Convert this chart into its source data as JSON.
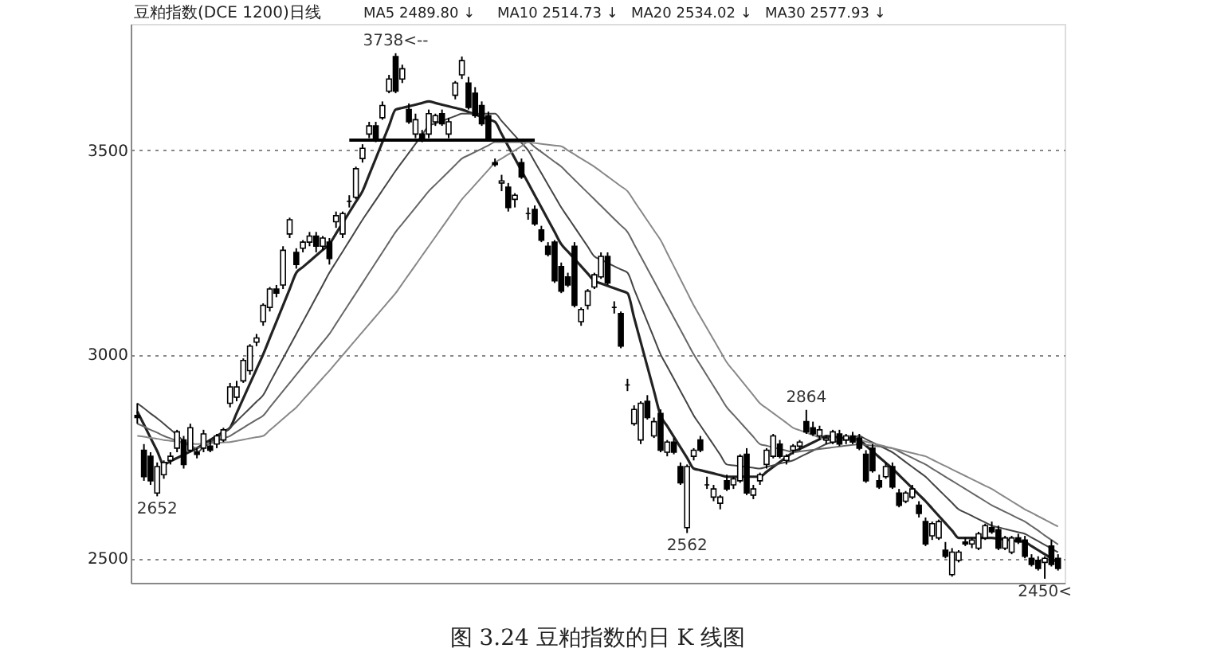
{
  "chart_data": {
    "type": "candlestick",
    "title": "豆粕指数(DCE 1200)日线",
    "categories": [
      null,
      null,
      null,
      null,
      null,
      null,
      null,
      null,
      null,
      null,
      null,
      null,
      null,
      null,
      null,
      null,
      null,
      null,
      null,
      null,
      null,
      null,
      null,
      null,
      null,
      null,
      null,
      null,
      null,
      null,
      null,
      null,
      null,
      null,
      null,
      null,
      null,
      null,
      null,
      null,
      null,
      null,
      null,
      null,
      null,
      null,
      null,
      null,
      null,
      null,
      null,
      null,
      null,
      null,
      null,
      null,
      null,
      null,
      null,
      null,
      null,
      null,
      null,
      null,
      null,
      null,
      null,
      null,
      null,
      null,
      null,
      null,
      null,
      null,
      null,
      null,
      null,
      null,
      null,
      null,
      null,
      null,
      null,
      null,
      null,
      null,
      null,
      null,
      null,
      null,
      null,
      null,
      null,
      null,
      null,
      null,
      null,
      null,
      null,
      null,
      null,
      null,
      null,
      null,
      null,
      null,
      null,
      null,
      null,
      null,
      null,
      null,
      null,
      null,
      null,
      null,
      null,
      null,
      null,
      null,
      null,
      null,
      null,
      null,
      null,
      null,
      null,
      null,
      null,
      null,
      null,
      null,
      null,
      null,
      null,
      null,
      null,
      null,
      null,
      null
    ],
    "ohlc": [
      [
        2850,
        2880,
        2830,
        2845
      ],
      [
        2765,
        2780,
        2690,
        2700
      ],
      [
        2750,
        2760,
        2680,
        2690
      ],
      [
        2660,
        2735,
        2652,
        2725
      ],
      [
        2705,
        2740,
        2695,
        2735
      ],
      [
        2740,
        2760,
        2730,
        2750
      ],
      [
        2770,
        2815,
        2760,
        2810
      ],
      [
        2790,
        2800,
        2720,
        2730
      ],
      [
        2765,
        2830,
        2760,
        2820
      ],
      [
        2760,
        2770,
        2745,
        2755
      ],
      [
        2770,
        2815,
        2760,
        2805
      ],
      [
        2775,
        2790,
        2760,
        2765
      ],
      [
        2780,
        2805,
        2770,
        2800
      ],
      [
        2790,
        2820,
        2785,
        2815
      ],
      [
        2880,
        2930,
        2870,
        2920
      ],
      [
        2895,
        2935,
        2885,
        2920
      ],
      [
        2935,
        2990,
        2930,
        2985
      ],
      [
        2960,
        3025,
        2950,
        3020
      ],
      [
        3030,
        3050,
        3020,
        3040
      ],
      [
        3080,
        3125,
        3070,
        3120
      ],
      [
        3115,
        3165,
        3105,
        3160
      ],
      [
        3160,
        3170,
        3140,
        3150
      ],
      [
        3170,
        3265,
        3160,
        3255
      ],
      [
        3295,
        3335,
        3285,
        3330
      ],
      [
        3250,
        3260,
        3210,
        3220
      ],
      [
        3260,
        3280,
        3250,
        3275
      ],
      [
        3275,
        3300,
        3265,
        3290
      ],
      [
        3290,
        3300,
        3250,
        3265
      ],
      [
        3265,
        3290,
        3255,
        3285
      ],
      [
        3275,
        3285,
        3220,
        3235
      ],
      [
        3325,
        3350,
        3310,
        3340
      ],
      [
        3295,
        3350,
        3285,
        3345
      ],
      [
        3375,
        3390,
        3360,
        3375
      ],
      [
        3385,
        3460,
        3380,
        3455
      ],
      [
        3480,
        3515,
        3470,
        3505
      ],
      [
        3540,
        3570,
        3530,
        3560
      ],
      [
        3560,
        3570,
        3520,
        3530
      ],
      [
        3580,
        3620,
        3575,
        3610
      ],
      [
        3645,
        3685,
        3640,
        3675
      ],
      [
        3730,
        3738,
        3640,
        3645
      ],
      [
        3675,
        3710,
        3665,
        3700
      ],
      [
        3600,
        3615,
        3565,
        3570
      ],
      [
        3540,
        3590,
        3530,
        3575
      ],
      [
        3540,
        3550,
        3520,
        3525
      ],
      [
        3540,
        3600,
        3530,
        3590
      ],
      [
        3570,
        3590,
        3560,
        3585
      ],
      [
        3590,
        3600,
        3560,
        3565
      ],
      [
        3540,
        3580,
        3530,
        3570
      ],
      [
        3635,
        3670,
        3625,
        3665
      ],
      [
        3685,
        3730,
        3675,
        3720
      ],
      [
        3665,
        3680,
        3600,
        3605
      ],
      [
        3640,
        3655,
        3580,
        3585
      ],
      [
        3610,
        3620,
        3560,
        3565
      ],
      [
        3585,
        3595,
        3525,
        3530
      ],
      [
        3470,
        3480,
        3460,
        3465
      ],
      [
        3420,
        3440,
        3400,
        3425
      ],
      [
        3410,
        3420,
        3350,
        3360
      ],
      [
        3380,
        3395,
        3360,
        3390
      ],
      [
        3470,
        3480,
        3430,
        3435
      ],
      [
        3345,
        3360,
        3330,
        3345
      ],
      [
        3355,
        3365,
        3315,
        3320
      ],
      [
        3305,
        3315,
        3275,
        3280
      ],
      [
        3265,
        3275,
        3240,
        3245
      ],
      [
        3275,
        3280,
        3175,
        3180
      ],
      [
        3215,
        3225,
        3150,
        3155
      ],
      [
        3190,
        3200,
        3165,
        3170
      ],
      [
        3265,
        3275,
        3115,
        3120
      ],
      [
        3080,
        3115,
        3070,
        3110
      ],
      [
        3120,
        3160,
        3110,
        3155
      ],
      [
        3165,
        3200,
        3160,
        3195
      ],
      [
        3190,
        3250,
        3185,
        3240
      ],
      [
        3240,
        3250,
        3170,
        3175
      ],
      [
        3115,
        3130,
        3100,
        3115
      ],
      [
        3100,
        3105,
        3015,
        3020
      ],
      [
        2925,
        2940,
        2910,
        2925
      ],
      [
        2830,
        2875,
        2825,
        2865
      ],
      [
        2790,
        2885,
        2780,
        2880
      ],
      [
        2885,
        2900,
        2840,
        2845
      ],
      [
        2800,
        2845,
        2795,
        2835
      ],
      [
        2855,
        2865,
        2760,
        2765
      ],
      [
        2760,
        2790,
        2750,
        2785
      ],
      [
        2785,
        2795,
        2755,
        2760
      ],
      [
        2725,
        2735,
        2680,
        2685
      ],
      [
        2575,
        2730,
        2562,
        2725
      ],
      [
        2750,
        2770,
        2740,
        2765
      ],
      [
        2790,
        2800,
        2760,
        2765
      ],
      [
        2680,
        2700,
        2670,
        2680
      ],
      [
        2650,
        2680,
        2640,
        2670
      ],
      [
        2635,
        2655,
        2620,
        2650
      ],
      [
        2690,
        2705,
        2665,
        2670
      ],
      [
        2680,
        2700,
        2670,
        2695
      ],
      [
        2690,
        2755,
        2685,
        2750
      ],
      [
        2755,
        2770,
        2655,
        2660
      ],
      [
        2655,
        2680,
        2645,
        2670
      ],
      [
        2690,
        2710,
        2680,
        2705
      ],
      [
        2730,
        2770,
        2720,
        2765
      ],
      [
        2750,
        2805,
        2745,
        2800
      ],
      [
        2780,
        2790,
        2745,
        2750
      ],
      [
        2740,
        2755,
        2730,
        2750
      ],
      [
        2765,
        2780,
        2755,
        2775
      ],
      [
        2775,
        2790,
        2765,
        2785
      ],
      [
        2835,
        2864,
        2805,
        2810
      ],
      [
        2820,
        2835,
        2800,
        2805
      ],
      [
        2800,
        2825,
        2790,
        2815
      ],
      [
        2790,
        2800,
        2780,
        2795
      ],
      [
        2785,
        2815,
        2780,
        2810
      ],
      [
        2805,
        2815,
        2775,
        2780
      ],
      [
        2790,
        2805,
        2780,
        2800
      ],
      [
        2800,
        2810,
        2780,
        2785
      ],
      [
        2795,
        2805,
        2765,
        2770
      ],
      [
        2755,
        2765,
        2685,
        2690
      ],
      [
        2770,
        2780,
        2710,
        2715
      ],
      [
        2690,
        2705,
        2670,
        2675
      ],
      [
        2700,
        2735,
        2695,
        2725
      ],
      [
        2725,
        2735,
        2670,
        2675
      ],
      [
        2660,
        2670,
        2625,
        2630
      ],
      [
        2640,
        2665,
        2635,
        2660
      ],
      [
        2650,
        2680,
        2645,
        2670
      ],
      [
        2630,
        2640,
        2600,
        2610
      ],
      [
        2590,
        2600,
        2530,
        2535
      ],
      [
        2555,
        2590,
        2545,
        2585
      ],
      [
        2550,
        2595,
        2545,
        2590
      ],
      [
        2520,
        2540,
        2500,
        2505
      ],
      [
        2460,
        2525,
        2455,
        2515
      ],
      [
        2495,
        2520,
        2490,
        2515
      ],
      [
        2540,
        2550,
        2530,
        2535
      ],
      [
        2535,
        2550,
        2525,
        2545
      ],
      [
        2525,
        2565,
        2520,
        2560
      ],
      [
        2550,
        2585,
        2545,
        2580
      ],
      [
        2575,
        2590,
        2560,
        2565
      ],
      [
        2570,
        2580,
        2520,
        2525
      ],
      [
        2525,
        2555,
        2520,
        2550
      ],
      [
        2515,
        2555,
        2510,
        2550
      ],
      [
        2550,
        2560,
        2535,
        2540
      ],
      [
        2545,
        2555,
        2500,
        2505
      ],
      [
        2500,
        2510,
        2480,
        2485
      ],
      [
        2495,
        2505,
        2470,
        2475
      ],
      [
        2490,
        2505,
        2450,
        2500
      ],
      [
        2530,
        2545,
        2480,
        2485
      ],
      [
        2500,
        2510,
        2470,
        2475
      ]
    ],
    "series": [
      {
        "type": "line",
        "color": "#222222",
        "values": [
          2860,
          2828,
          2795,
          2763,
          2730,
          2738,
          2746,
          2754,
          2762,
          2770,
          2780,
          2790,
          2800,
          2810,
          2820,
          2856,
          2892,
          2928,
          2964,
          3000,
          3040,
          3080,
          3120,
          3160,
          3200,
          3214,
          3228,
          3242,
          3256,
          3270,
          3296,
          3322,
          3348,
          3374,
          3400,
          3440,
          3480,
          3520,
          3560,
          3600,
          3604,
          3608,
          3612,
          3616,
          3620,
          3616,
          3612,
          3608,
          3604,
          3600,
          3594,
          3588,
          3582,
          3576,
          3570,
          3540,
          3510,
          3480,
          3450,
          3420,
          3390,
          3360,
          3330,
          3300,
          3270,
          3252,
          3234,
          3216,
          3198,
          3180,
          3174,
          3168,
          3162,
          3156,
          3150,
          3090,
          3030,
          2970,
          2910,
          2850,
          2824,
          2798,
          2772,
          2746,
          2720,
          2716,
          2712,
          2708,
          2704,
          2700,
          2700,
          2700,
          2700,
          2700,
          2700,
          2712,
          2724,
          2736,
          2748,
          2760,
          2768,
          2776,
          2784,
          2792,
          2800,
          2798,
          2796,
          2794,
          2792,
          2790,
          2776,
          2762,
          2748,
          2734,
          2720,
          2704,
          2688,
          2672,
          2656,
          2640,
          2622,
          2604,
          2586,
          2568,
          2550,
          2550,
          2550,
          2550,
          2550,
          2550,
          2548,
          2546,
          2544,
          2542,
          2540,
          2530,
          2520,
          2510,
          2500,
          2490
        ]
      },
      {
        "type": "line",
        "color": "#444444",
        "values": [
          2880,
          2868,
          2855,
          2843,
          2830,
          2816,
          2802,
          2788,
          2774,
          2760,
          2772,
          2784,
          2796,
          2808,
          2820,
          2836,
          2852,
          2868,
          2884,
          2900,
          2930,
          2960,
          2990,
          3020,
          3050,
          3080,
          3110,
          3140,
          3170,
          3200,
          3226,
          3252,
          3278,
          3304,
          3330,
          3354,
          3378,
          3402,
          3426,
          3450,
          3472,
          3494,
          3516,
          3538,
          3560,
          3566,
          3572,
          3578,
          3584,
          3590,
          3590,
          3590,
          3590,
          3590,
          3590,
          3572,
          3554,
          3536,
          3518,
          3500,
          3472,
          3444,
          3416,
          3388,
          3360,
          3336,
          3312,
          3288,
          3264,
          3240,
          3232,
          3224,
          3216,
          3208,
          3200,
          3160,
          3120,
          3080,
          3040,
          3000,
          2970,
          2940,
          2910,
          2880,
          2850,
          2826,
          2802,
          2778,
          2754,
          2730,
          2728,
          2726,
          2724,
          2722,
          2720,
          2724,
          2728,
          2732,
          2736,
          2740,
          2748,
          2756,
          2764,
          2772,
          2780,
          2784,
          2788,
          2792,
          2796,
          2800,
          2792,
          2784,
          2776,
          2768,
          2760,
          2748,
          2736,
          2724,
          2712,
          2700,
          2684,
          2668,
          2652,
          2636,
          2620,
          2612,
          2604,
          2596,
          2588,
          2580,
          2576,
          2572,
          2568,
          2564,
          2560,
          2551,
          2542,
          2533,
          2524,
          2515
        ]
      },
      {
        "type": "line",
        "color": "#666666",
        "values": [
          2830,
          2823,
          2815,
          2808,
          2800,
          2794,
          2788,
          2782,
          2776,
          2770,
          2776,
          2782,
          2788,
          2794,
          2800,
          2810,
          2820,
          2830,
          2840,
          2850,
          2870,
          2890,
          2910,
          2930,
          2950,
          2970,
          2990,
          3010,
          3030,
          3050,
          3075,
          3100,
          3125,
          3150,
          3175,
          3200,
          3225,
          3250,
          3275,
          3300,
          3320,
          3340,
          3360,
          3380,
          3400,
          3416,
          3432,
          3448,
          3464,
          3480,
          3488,
          3496,
          3504,
          3512,
          3520,
          3520,
          3520,
          3520,
          3520,
          3520,
          3508,
          3496,
          3484,
          3472,
          3460,
          3444,
          3428,
          3412,
          3396,
          3380,
          3364,
          3348,
          3332,
          3316,
          3300,
          3270,
          3240,
          3210,
          3180,
          3150,
          3120,
          3090,
          3060,
          3030,
          3000,
          2974,
          2948,
          2922,
          2896,
          2870,
          2852,
          2834,
          2816,
          2798,
          2780,
          2776,
          2772,
          2768,
          2764,
          2760,
          2762,
          2764,
          2766,
          2768,
          2770,
          2772,
          2774,
          2776,
          2778,
          2780,
          2778,
          2776,
          2774,
          2772,
          2770,
          2762,
          2754,
          2746,
          2738,
          2730,
          2720,
          2710,
          2700,
          2690,
          2680,
          2670,
          2660,
          2650,
          2640,
          2630,
          2622,
          2614,
          2606,
          2598,
          2590,
          2579,
          2568,
          2556,
          2545,
          2534
        ]
      },
      {
        "type": "line",
        "color": "#888888",
        "values": [
          2800,
          2798,
          2795,
          2793,
          2790,
          2788,
          2786,
          2784,
          2782,
          2780,
          2781,
          2782,
          2783,
          2784,
          2785,
          2788,
          2791,
          2794,
          2797,
          2800,
          2814,
          2828,
          2842,
          2856,
          2870,
          2888,
          2906,
          2924,
          2942,
          2960,
          2979,
          2998,
          3017,
          3036,
          3055,
          3074,
          3093,
          3112,
          3131,
          3150,
          3173,
          3196,
          3219,
          3242,
          3265,
          3288,
          3311,
          3334,
          3357,
          3380,
          3398,
          3416,
          3434,
          3452,
          3470,
          3480,
          3490,
          3500,
          3510,
          3520,
          3518,
          3516,
          3514,
          3512,
          3510,
          3500,
          3490,
          3480,
          3470,
          3460,
          3448,
          3436,
          3424,
          3412,
          3400,
          3376,
          3352,
          3328,
          3304,
          3280,
          3248,
          3216,
          3184,
          3152,
          3120,
          3092,
          3064,
          3036,
          3008,
          2980,
          2960,
          2940,
          2920,
          2900,
          2880,
          2868,
          2856,
          2844,
          2832,
          2820,
          2814,
          2808,
          2802,
          2796,
          2790,
          2790,
          2790,
          2790,
          2790,
          2790,
          2786,
          2782,
          2778,
          2774,
          2770,
          2766,
          2762,
          2758,
          2754,
          2750,
          2742,
          2734,
          2726,
          2718,
          2710,
          2702,
          2694,
          2686,
          2678,
          2670,
          2660,
          2650,
          2640,
          2630,
          2620,
          2612,
          2603,
          2595,
          2586,
          2578
        ]
      },
      {
        "type": "line",
        "color": "#000000",
        "values": [
          null,
          null,
          null,
          null,
          null,
          null,
          null,
          null,
          null,
          null,
          null,
          null,
          null,
          null,
          null,
          null,
          null,
          null,
          null,
          null,
          null,
          null,
          null,
          null,
          null,
          null,
          null,
          null,
          null,
          null,
          null,
          null,
          3525,
          3525,
          3525,
          3525,
          3525,
          3525,
          3525,
          3525,
          3525,
          3525,
          3525,
          3525,
          3525,
          3525,
          3525,
          3525,
          3525,
          3525,
          3525,
          3525,
          3525,
          3525,
          3525,
          3525,
          3525,
          3525,
          3525,
          3525,
          3525,
          null,
          null,
          null,
          null,
          null,
          null,
          null,
          null,
          null,
          null,
          null,
          null,
          null,
          null,
          null,
          null,
          null,
          null,
          null,
          null,
          null,
          null,
          null,
          null,
          null,
          null,
          null,
          null,
          null,
          null,
          null,
          null,
          null,
          null,
          null,
          null,
          null,
          null,
          null,
          null,
          null,
          null,
          null,
          null,
          null,
          null,
          null,
          null,
          null,
          null,
          null,
          null,
          null,
          null,
          null,
          null,
          null,
          null,
          null,
          null,
          null,
          null,
          null,
          null,
          null,
          null,
          null,
          null,
          null,
          null,
          null,
          null,
          null,
          null,
          null,
          null,
          null,
          null,
          null
        ]
      }
    ],
    "ylim": [
      2440,
      3810
    ],
    "yticks": [
      2500,
      3000,
      3500
    ],
    "grid": "y",
    "tick_labels": "y",
    "annotations": [
      "MA5 2489.80 ↓",
      "MA10 2514.73 ↓",
      "MA20 2534.02 ↓",
      "MA30 2577.93 ↓",
      {
        "text": "3738<--",
        "y": 3738
      },
      {
        "text": "2652",
        "y": 2652
      },
      {
        "text": "2562",
        "y": 2562
      },
      {
        "text": "2864",
        "y": 2864
      },
      {
        "text": "2450<",
        "y": 2450
      },
      "图 3.24    豆粕指数的日 K 线图"
    ]
  }
}
